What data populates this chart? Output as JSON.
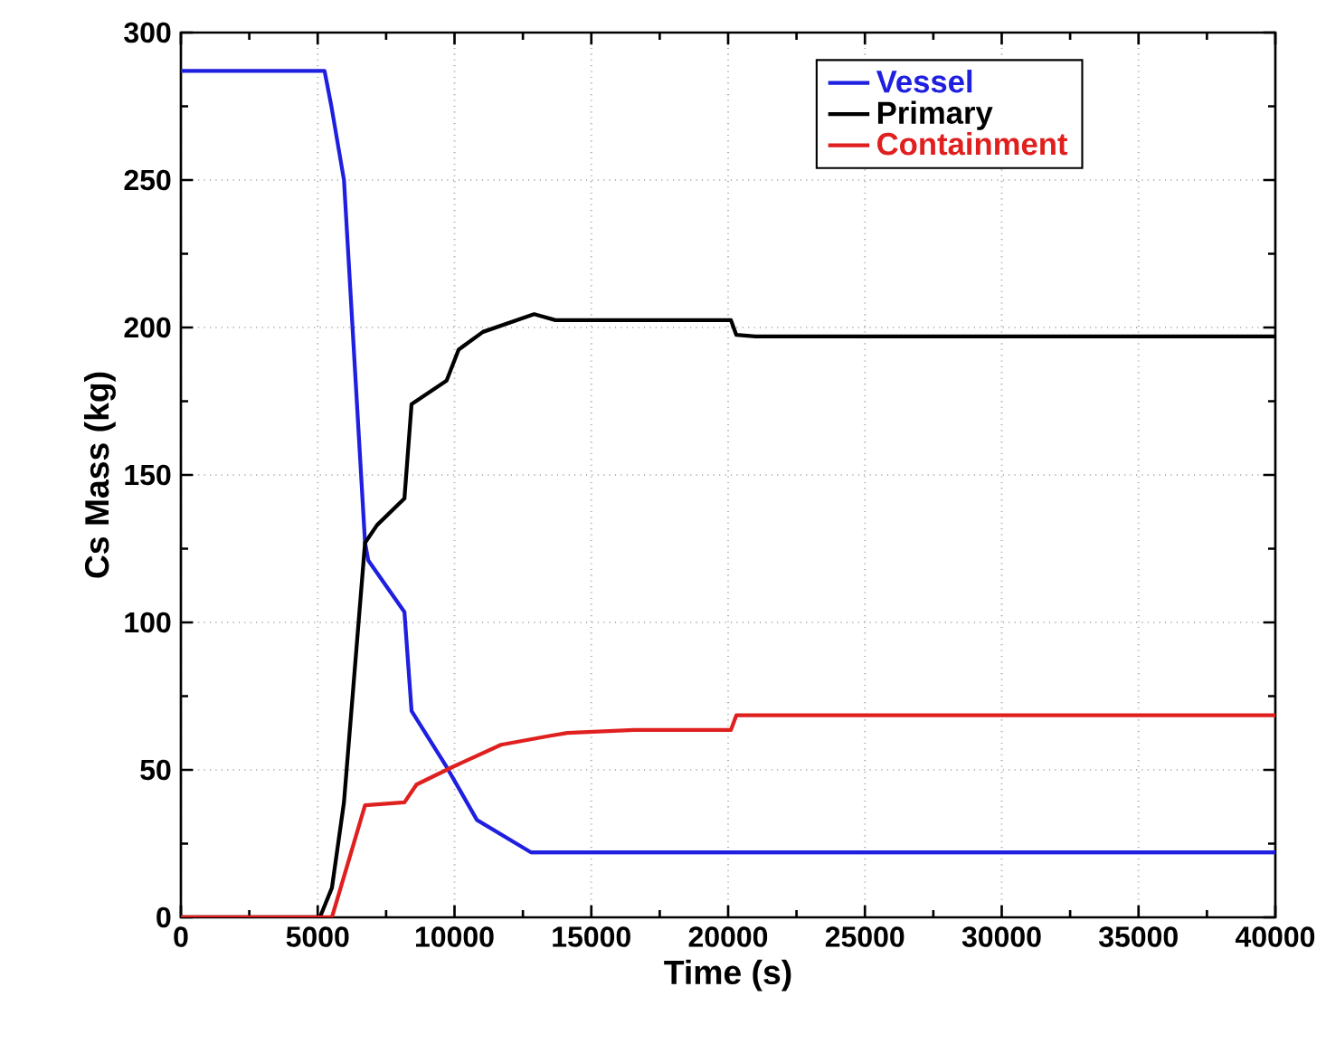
{
  "chart_data": {
    "type": "line",
    "xlabel": "Time (s)",
    "ylabel": "Cs Mass (kg)",
    "xlim": [
      0,
      40000
    ],
    "ylim": [
      0,
      300
    ],
    "xticks": [
      0,
      5000,
      10000,
      15000,
      20000,
      25000,
      30000,
      35000,
      40000
    ],
    "yticks": [
      0,
      50,
      100,
      150,
      200,
      250,
      300
    ],
    "grid": true,
    "legend": "top right",
    "series": [
      {
        "name": "Vessel",
        "color": "#1f1fe0",
        "x": [
          0,
          5250,
          5500,
          5960,
          6730,
          6850,
          8170,
          8430,
          9710,
          10820,
          12800,
          40000
        ],
        "values": [
          287,
          287,
          275,
          250,
          127,
          121,
          103.5,
          70,
          51,
          33,
          22,
          22
        ]
      },
      {
        "name": "Primary",
        "color": "#000000",
        "x": [
          0,
          5080,
          5520,
          5960,
          6730,
          7170,
          8170,
          8430,
          9710,
          10150,
          11040,
          12910,
          13690,
          20100,
          20300,
          21000,
          40000
        ],
        "values": [
          0,
          0,
          10,
          39,
          127,
          133,
          142,
          174,
          182,
          192.5,
          198.5,
          204.5,
          202.5,
          202.5,
          197.5,
          197,
          197
        ]
      },
      {
        "name": "Containment",
        "color": "#e01f1f",
        "x": [
          0,
          5520,
          6730,
          8170,
          8610,
          9930,
          11700,
          13460,
          14130,
          16560,
          20100,
          20300,
          40000
        ],
        "values": [
          0,
          0,
          38,
          39,
          45,
          51,
          58.5,
          61.5,
          62.5,
          63.5,
          63.5,
          68.5,
          68.5
        ]
      }
    ]
  }
}
